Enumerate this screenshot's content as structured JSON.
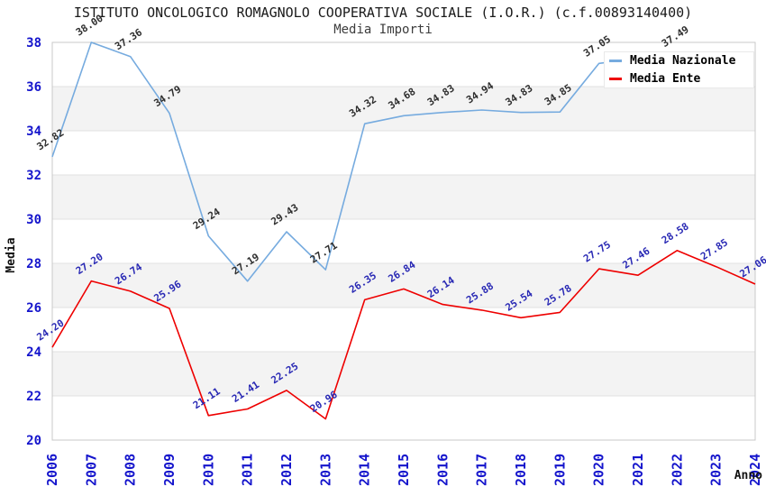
{
  "page": {
    "title": "ISTITUTO ONCOLOGICO ROMAGNOLO COOPERATIVA SOCIALE (I.O.R.) (c.f.00893140400)",
    "subtitle": "Media Importi"
  },
  "legend": {
    "items": [
      {
        "label": "Media Nazionale",
        "color": "#76abdf"
      },
      {
        "label": "Media Ente",
        "color": "#ee0000"
      }
    ]
  },
  "chart_data": {
    "type": "line",
    "title": "ISTITUTO ONCOLOGICO ROMAGNOLO COOPERATIVA SOCIALE (I.O.R.) (c.f.00893140400)",
    "subtitle": "Media Importi",
    "xlabel": "Anno",
    "ylabel": "Media",
    "x": [
      2006,
      2007,
      2008,
      2009,
      2010,
      2011,
      2012,
      2013,
      2014,
      2015,
      2016,
      2017,
      2018,
      2019,
      2020,
      2021,
      2022,
      2023,
      2024
    ],
    "series": [
      {
        "name": "Media Nazionale",
        "color": "#76abdf",
        "label_color": "#2e2e2e",
        "values": [
          32.82,
          38.0,
          37.36,
          34.79,
          29.24,
          27.19,
          29.43,
          27.71,
          34.32,
          34.68,
          34.83,
          34.94,
          34.83,
          34.85,
          37.05,
          null,
          37.49,
          null,
          null
        ]
      },
      {
        "name": "Media Ente",
        "color": "#ee0000",
        "label_color": "#2828b4",
        "values": [
          24.2,
          27.2,
          26.74,
          25.96,
          21.11,
          21.41,
          22.25,
          20.96,
          26.35,
          26.84,
          26.14,
          25.88,
          25.54,
          25.78,
          27.75,
          27.46,
          28.58,
          27.85,
          27.06
        ]
      }
    ],
    "ylim": [
      20,
      38
    ],
    "yticks": [
      20,
      22,
      24,
      26,
      28,
      30,
      32,
      34,
      36,
      38
    ],
    "grid": "horizontal",
    "legend_position": "top-right",
    "band_color": "#f3f3f3",
    "grid_color": "#e2e2e2",
    "border_color": "#c8c8c8",
    "tick_color": "#1414cc"
  }
}
